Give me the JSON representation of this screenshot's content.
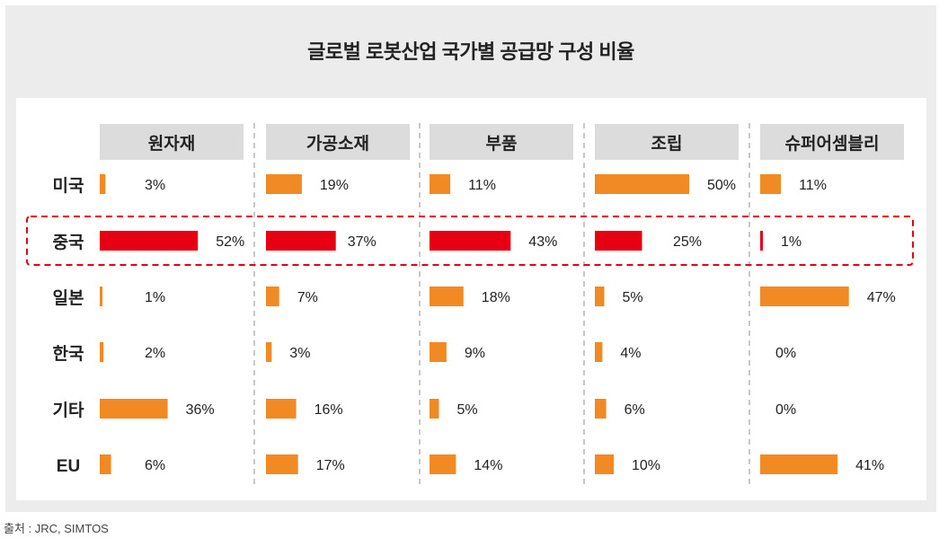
{
  "footer": {
    "source": "출처 : JRC, SIMTOS"
  },
  "chart_data": {
    "type": "bar",
    "title": "글로벌 로봇산업 국가별 공급망 구성 비율",
    "unit": "%",
    "highlight_category": "중국",
    "categories": [
      "미국",
      "중국",
      "일본",
      "한국",
      "기타",
      "EU"
    ],
    "series": [
      {
        "name": "원자재",
        "values": [
          3,
          52,
          1,
          2,
          36,
          6
        ]
      },
      {
        "name": "가공소재",
        "values": [
          19,
          37,
          7,
          3,
          16,
          17
        ]
      },
      {
        "name": "부품",
        "values": [
          11,
          43,
          18,
          9,
          5,
          14
        ]
      },
      {
        "name": "조립",
        "values": [
          50,
          25,
          5,
          4,
          6,
          10
        ]
      },
      {
        "name": "슈퍼어셈블리",
        "values": [
          11,
          1,
          47,
          0,
          0,
          41
        ]
      }
    ],
    "colors": {
      "normal": "#f28a23",
      "highlight": "#e60012",
      "header_bg": "#dcdcdc",
      "outline": "#e60012"
    },
    "xlim": [
      0,
      60
    ]
  }
}
